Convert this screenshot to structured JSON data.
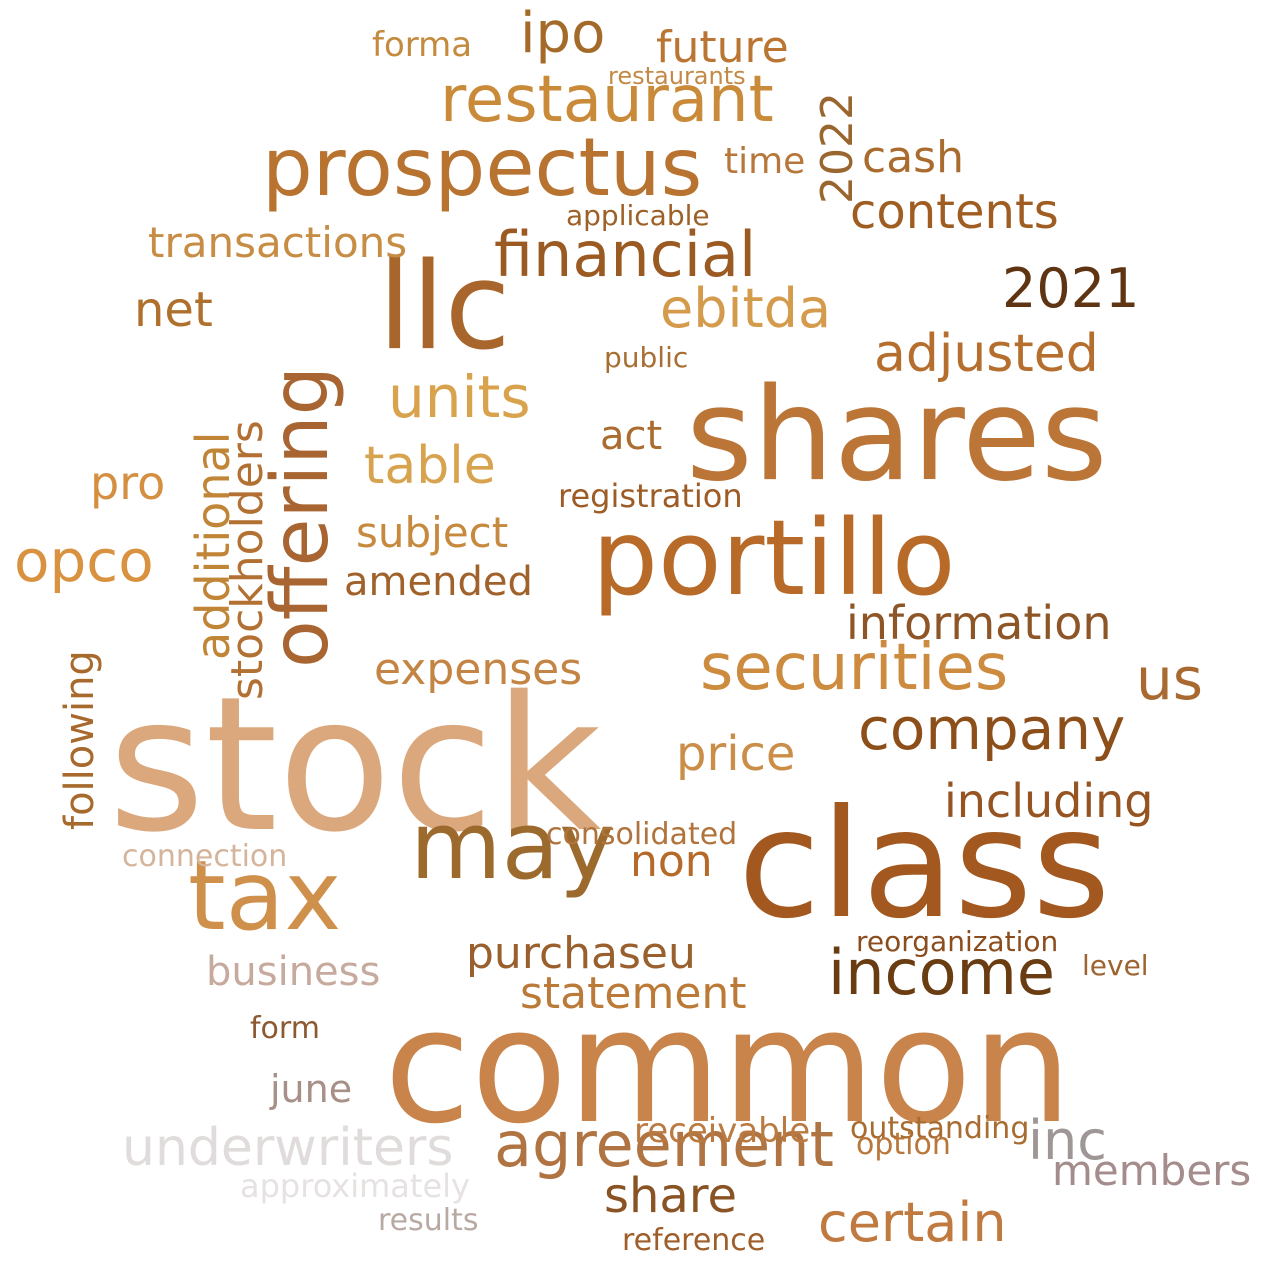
{
  "words": [
    {
      "text": "stock",
      "color": "#dba87d"
    },
    {
      "text": "common",
      "color": "#c8844a"
    },
    {
      "text": "class",
      "color": "#a3581f"
    },
    {
      "text": "shares",
      "color": "#bb7537"
    },
    {
      "text": "portillo",
      "color": "#b86b28"
    },
    {
      "text": "llc",
      "color": "#a8662d"
    },
    {
      "text": "may",
      "color": "#9b6a2c"
    },
    {
      "text": "prospectus",
      "color": "#b7732f"
    },
    {
      "text": "restaurant",
      "color": "#c98a3a"
    },
    {
      "text": "tax",
      "color": "#cf904b"
    },
    {
      "text": "offering",
      "color": "#a86531"
    },
    {
      "text": "securities",
      "color": "#cc8b3e"
    },
    {
      "text": "income",
      "color": "#6a3c11"
    },
    {
      "text": "agreement",
      "color": "#b07442"
    },
    {
      "text": "financial",
      "color": "#9a5a21"
    },
    {
      "text": "company",
      "color": "#8c4f19"
    },
    {
      "text": "opco",
      "color": "#d9923f"
    },
    {
      "text": "units",
      "color": "#d9a24c"
    },
    {
      "text": "including",
      "color": "#955421"
    },
    {
      "text": "us",
      "color": "#a86a31"
    },
    {
      "text": "inc",
      "color": "#9f9696"
    },
    {
      "text": "certain",
      "color": "#c07a3f"
    },
    {
      "text": "underwriters",
      "color": "#e1dcdc"
    },
    {
      "text": "members",
      "color": "#a58c8c"
    },
    {
      "text": "share",
      "color": "#8a5324"
    },
    {
      "text": "purchaseu",
      "color": "#99602e"
    },
    {
      "text": "information",
      "color": "#8e5627"
    },
    {
      "text": "adjusted",
      "color": "#b56e2d"
    },
    {
      "text": "ebitda",
      "color": "#d49b4c"
    },
    {
      "text": "contents",
      "color": "#9f5d22"
    },
    {
      "text": "2021",
      "color": "#5e3412"
    },
    {
      "text": "ipo",
      "color": "#a46a2a"
    },
    {
      "text": "future",
      "color": "#ba7532"
    },
    {
      "text": "forma",
      "color": "#c48a3e"
    },
    {
      "text": "cash",
      "color": "#aa6b2f"
    },
    {
      "text": "net",
      "color": "#b0702d"
    },
    {
      "text": "transactions",
      "color": "#c78d45"
    },
    {
      "text": "table",
      "color": "#d8a34e"
    },
    {
      "text": "business",
      "color": "#c7aa9e"
    },
    {
      "text": "statement",
      "color": "#bb7a38"
    },
    {
      "text": "price",
      "color": "#cb8e48"
    },
    {
      "text": "expenses",
      "color": "#c48544"
    },
    {
      "text": "stockholders",
      "color": "#b27032"
    },
    {
      "text": "additional",
      "color": "#c18538"
    },
    {
      "text": "following",
      "color": "#a76a2c"
    },
    {
      "text": "subject",
      "color": "#c6893d"
    },
    {
      "text": "amended",
      "color": "#a1612a"
    },
    {
      "text": "registration",
      "color": "#9d5c26"
    },
    {
      "text": "applicable",
      "color": "#9d6128"
    },
    {
      "text": "2022",
      "color": "#9a6630"
    },
    {
      "text": "non",
      "color": "#b56a2a"
    },
    {
      "text": "pro",
      "color": "#d48f41"
    },
    {
      "text": "act",
      "color": "#aa6c2f"
    },
    {
      "text": "time",
      "color": "#b8773a"
    },
    {
      "text": "receivable",
      "color": "#bb7a40"
    },
    {
      "text": "reorganization",
      "color": "#8b4d1d"
    },
    {
      "text": "consolidated",
      "color": "#b0733b"
    },
    {
      "text": "outstanding",
      "color": "#a86c31"
    },
    {
      "text": "june",
      "color": "#a79087"
    },
    {
      "text": "reference",
      "color": "#9e5e2a"
    },
    {
      "text": "approximately",
      "color": "#e6e2e2"
    },
    {
      "text": "results",
      "color": "#b9a9a3"
    },
    {
      "text": "option",
      "color": "#b9773a"
    },
    {
      "text": "connection",
      "color": "#d4b49b"
    },
    {
      "text": "public",
      "color": "#a86e33"
    },
    {
      "text": "restaurants",
      "color": "#c28a46"
    },
    {
      "text": "level",
      "color": "#9d6431"
    },
    {
      "text": "form",
      "color": "#8d5931"
    }
  ]
}
